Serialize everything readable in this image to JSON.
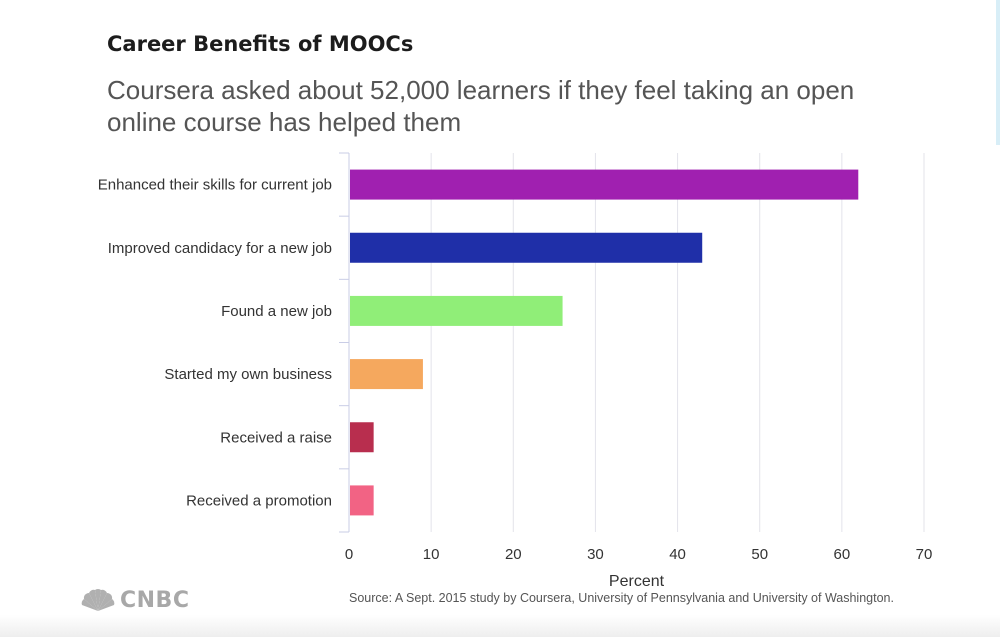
{
  "header": {
    "title": "Career Benefits of MOOCs",
    "subtitle": "Coursera asked about 52,000 learners if they feel taking an open online course has helped them"
  },
  "chart_data": {
    "type": "bar",
    "orientation": "horizontal",
    "categories": [
      "Enhanced their skills for current job",
      "Improved candidacy for a new job",
      "Found a new job",
      "Started my own business",
      "Received a raise",
      "Received a promotion"
    ],
    "values": [
      62,
      43,
      26,
      9,
      3,
      3
    ],
    "colors": [
      "#a020b0",
      "#1f2fa8",
      "#90ee78",
      "#f5a85e",
      "#b82e4e",
      "#f26384"
    ],
    "xlabel": "Percent",
    "ylabel": "",
    "xlim": [
      0,
      70
    ],
    "xticks": [
      0,
      10,
      20,
      30,
      40,
      50,
      60,
      70
    ],
    "grid": "vertical"
  },
  "source": "Source: A Sept. 2015 study by Coursera, University of Pennsylvania and University of Washington.",
  "logo": {
    "text": "CNBC",
    "icon": "peacock-icon"
  }
}
